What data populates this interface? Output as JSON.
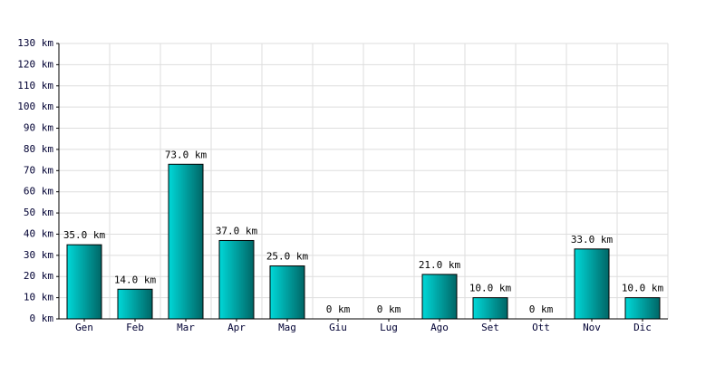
{
  "chart_data": {
    "type": "bar",
    "categories": [
      "Gen",
      "Feb",
      "Mar",
      "Apr",
      "Mag",
      "Giu",
      "Lug",
      "Ago",
      "Set",
      "Ott",
      "Nov",
      "Dic"
    ],
    "values": [
      35,
      14,
      73,
      37,
      25,
      0,
      0,
      21,
      10,
      0,
      33,
      10
    ],
    "value_labels": [
      "35.0 km",
      "14.0 km",
      "73.0 km",
      "37.0 km",
      "25.0 km",
      "0 km",
      "0 km",
      "21.0 km",
      "10.0 km",
      "0 km",
      "33.0 km",
      "10.0 km"
    ],
    "color": "#00d8d8",
    "ylim": [
      0,
      130
    ],
    "yticks": [
      {
        "value": 0,
        "label": "0 km"
      },
      {
        "value": 10,
        "label": "10 km"
      },
      {
        "value": 20,
        "label": "20 km"
      },
      {
        "value": 30,
        "label": "30 km"
      },
      {
        "value": 40,
        "label": "40 km"
      },
      {
        "value": 50,
        "label": "50 km"
      },
      {
        "value": 60,
        "label": "60 km"
      },
      {
        "value": 70,
        "label": "70 km"
      },
      {
        "value": 80,
        "label": "80 km"
      },
      {
        "value": 90,
        "label": "90 km"
      },
      {
        "value": 100,
        "label": "100 km"
      },
      {
        "value": 110,
        "label": "110 km"
      },
      {
        "value": 120,
        "label": "120 km"
      },
      {
        "value": 130,
        "label": "130 km"
      }
    ],
    "grid": true
  }
}
